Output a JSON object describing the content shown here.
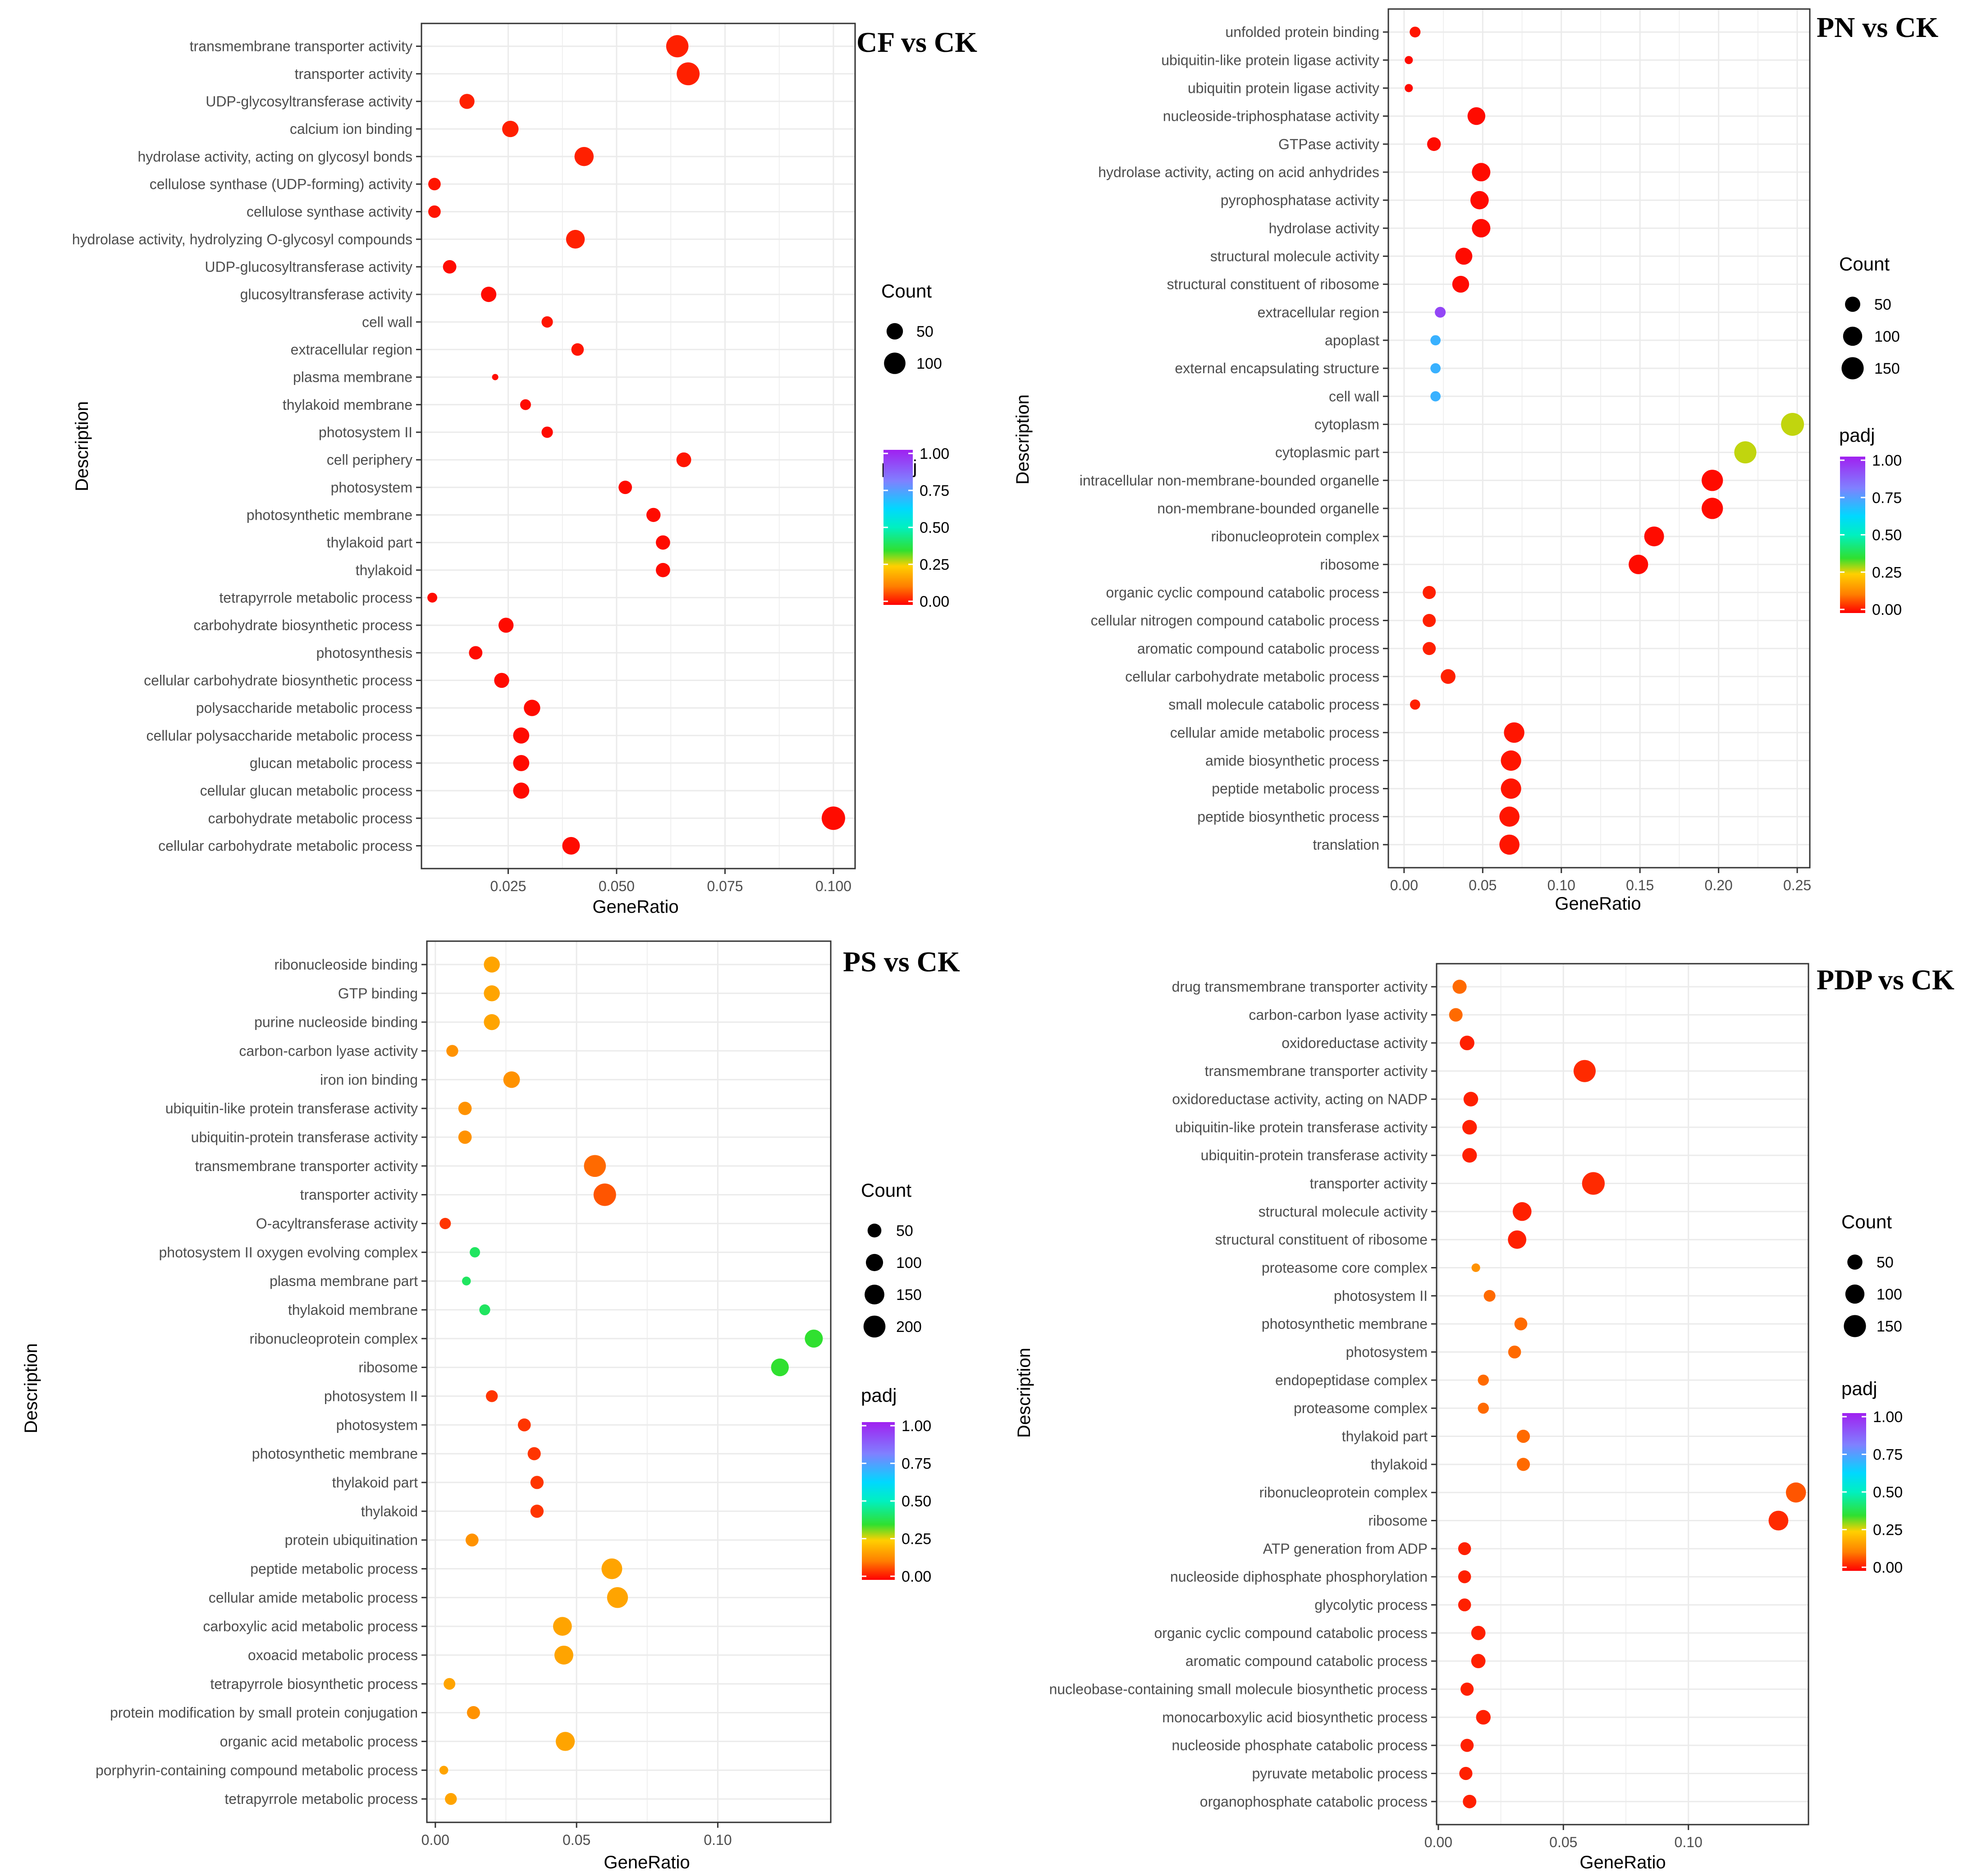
{
  "chart_data": [
    {
      "type": "scatter",
      "title": "CF vs CK",
      "xlabel": "GeneRatio",
      "ylabel": "Description",
      "xlim": [
        0.005,
        0.105
      ],
      "xticks": [
        0.025,
        0.05,
        0.075,
        0.1
      ],
      "xtick_labels": [
        "0.025",
        "0.050",
        "0.075",
        "0.100"
      ],
      "size_legend": {
        "title": "Count",
        "values": [
          50,
          100
        ]
      },
      "color_legend": {
        "title": "padj",
        "ticks": [
          "1.00",
          "0.75",
          "0.50",
          "0.25",
          "0.00"
        ]
      },
      "count_range": [
        10,
        125
      ],
      "terms": [
        {
          "label": "transmembrane transporter activity",
          "x": 0.064,
          "count": 110,
          "padj": 0.03
        },
        {
          "label": "transporter activity",
          "x": 0.0665,
          "count": 118,
          "padj": 0.03
        },
        {
          "label": "UDP-glycosyltransferase activity",
          "x": 0.0155,
          "count": 40,
          "padj": 0.03
        },
        {
          "label": "calcium ion binding",
          "x": 0.0255,
          "count": 50,
          "padj": 0.03
        },
        {
          "label": "hydrolase activity, acting on glycosyl bonds",
          "x": 0.0425,
          "count": 75,
          "padj": 0.03
        },
        {
          "label": "cellulose synthase (UDP-forming) activity",
          "x": 0.008,
          "count": 25,
          "padj": 0.02
        },
        {
          "label": "cellulose synthase activity",
          "x": 0.008,
          "count": 25,
          "padj": 0.02
        },
        {
          "label": "hydrolase activity, hydrolyzing O-glycosyl compounds",
          "x": 0.0405,
          "count": 70,
          "padj": 0.03
        },
        {
          "label": "UDP-glucosyltransferase activity",
          "x": 0.0115,
          "count": 30,
          "padj": 0.01
        },
        {
          "label": "glucosyltransferase activity",
          "x": 0.0205,
          "count": 42,
          "padj": 0.01
        },
        {
          "label": "cell wall",
          "x": 0.034,
          "count": 20,
          "padj": 0.02
        },
        {
          "label": "extracellular region",
          "x": 0.041,
          "count": 25,
          "padj": 0.02
        },
        {
          "label": "plasma membrane",
          "x": 0.022,
          "count": 10,
          "padj": 0.01
        },
        {
          "label": "thylakoid membrane",
          "x": 0.029,
          "count": 18,
          "padj": 0.01
        },
        {
          "label": "photosystem II",
          "x": 0.034,
          "count": 20,
          "padj": 0.01
        },
        {
          "label": "cell periphery",
          "x": 0.0655,
          "count": 38,
          "padj": 0.02
        },
        {
          "label": "photosystem",
          "x": 0.052,
          "count": 30,
          "padj": 0.01
        },
        {
          "label": "photosynthetic membrane",
          "x": 0.0585,
          "count": 34,
          "padj": 0.01
        },
        {
          "label": "thylakoid part",
          "x": 0.0607,
          "count": 35,
          "padj": 0.01
        },
        {
          "label": "thylakoid",
          "x": 0.0607,
          "count": 35,
          "padj": 0.01
        },
        {
          "label": "tetrapyrrole metabolic process",
          "x": 0.0075,
          "count": 15,
          "padj": 0.01
        },
        {
          "label": "carbohydrate biosynthetic process",
          "x": 0.0245,
          "count": 40,
          "padj": 0.01
        },
        {
          "label": "photosynthesis",
          "x": 0.0175,
          "count": 30,
          "padj": 0.01
        },
        {
          "label": "cellular carbohydrate biosynthetic process",
          "x": 0.0235,
          "count": 40,
          "padj": 0.01
        },
        {
          "label": "polysaccharide metabolic process",
          "x": 0.0305,
          "count": 50,
          "padj": 0.01
        },
        {
          "label": "cellular polysaccharide metabolic process",
          "x": 0.028,
          "count": 48,
          "padj": 0.01
        },
        {
          "label": "glucan metabolic process",
          "x": 0.028,
          "count": 48,
          "padj": 0.01
        },
        {
          "label": "cellular glucan metabolic process",
          "x": 0.028,
          "count": 48,
          "padj": 0.01
        },
        {
          "label": "carbohydrate metabolic process",
          "x": 0.1,
          "count": 125,
          "padj": 0.01
        },
        {
          "label": "cellular carbohydrate metabolic process",
          "x": 0.0395,
          "count": 60,
          "padj": 0.01
        }
      ]
    },
    {
      "type": "scatter",
      "title": "PN vs CK",
      "xlabel": "GeneRatio",
      "ylabel": "Description",
      "xlim": [
        -0.01,
        0.258
      ],
      "xticks": [
        0.0,
        0.05,
        0.1,
        0.15,
        0.2,
        0.25
      ],
      "xtick_labels": [
        "0.00",
        "0.05",
        "0.10",
        "0.15",
        "0.20",
        "0.25"
      ],
      "size_legend": {
        "title": "Count",
        "values": [
          50,
          100,
          150
        ]
      },
      "color_legend": {
        "title": "padj",
        "ticks": [
          "1.00",
          "0.75",
          "0.50",
          "0.25",
          "0.00"
        ]
      },
      "count_range": [
        3,
        175
      ],
      "terms": [
        {
          "label": "unfolded protein binding",
          "x": 0.007,
          "count": 15,
          "padj": 0.02
        },
        {
          "label": "ubiquitin-like protein ligase activity",
          "x": 0.003,
          "count": 5,
          "padj": 0.01
        },
        {
          "label": "ubiquitin protein ligase activity",
          "x": 0.003,
          "count": 5,
          "padj": 0.01
        },
        {
          "label": "nucleoside-triphosphatase activity",
          "x": 0.046,
          "count": 80,
          "padj": 0.01
        },
        {
          "label": "GTPase activity",
          "x": 0.019,
          "count": 35,
          "padj": 0.01
        },
        {
          "label": "hydrolase activity, acting on acid anhydrides",
          "x": 0.049,
          "count": 90,
          "padj": 0.01
        },
        {
          "label": "pyrophosphatase activity",
          "x": 0.048,
          "count": 88,
          "padj": 0.01
        },
        {
          "label": "hydrolase activity",
          "x": 0.049,
          "count": 90,
          "padj": 0.01
        },
        {
          "label": "structural molecule activity",
          "x": 0.038,
          "count": 70,
          "padj": 0.01
        },
        {
          "label": "structural constituent of ribosome",
          "x": 0.036,
          "count": 68,
          "padj": 0.01
        },
        {
          "label": "extracellular region",
          "x": 0.023,
          "count": 15,
          "padj": 0.92
        },
        {
          "label": "apoplast",
          "x": 0.02,
          "count": 12,
          "padj": 0.7
        },
        {
          "label": "external encapsulating structure",
          "x": 0.02,
          "count": 12,
          "padj": 0.7
        },
        {
          "label": "cell wall",
          "x": 0.02,
          "count": 12,
          "padj": 0.7
        },
        {
          "label": "cytoplasm",
          "x": 0.247,
          "count": 165,
          "padj": 0.28
        },
        {
          "label": "cytoplasmic part",
          "x": 0.217,
          "count": 150,
          "padj": 0.28
        },
        {
          "label": "intracellular non-membrane-bounded organelle",
          "x": 0.196,
          "count": 135,
          "padj": 0.01
        },
        {
          "label": "non-membrane-bounded organelle",
          "x": 0.196,
          "count": 135,
          "padj": 0.01
        },
        {
          "label": "ribonucleoprotein complex",
          "x": 0.159,
          "count": 110,
          "padj": 0.01
        },
        {
          "label": "ribosome",
          "x": 0.149,
          "count": 105,
          "padj": 0.01
        },
        {
          "label": "organic cyclic compound catabolic process",
          "x": 0.016,
          "count": 30,
          "padj": 0.03
        },
        {
          "label": "cellular nitrogen compound catabolic process",
          "x": 0.016,
          "count": 30,
          "padj": 0.03
        },
        {
          "label": "aromatic compound catabolic process",
          "x": 0.016,
          "count": 30,
          "padj": 0.03
        },
        {
          "label": "cellular carbohydrate metabolic process",
          "x": 0.028,
          "count": 45,
          "padj": 0.03
        },
        {
          "label": "small molecule catabolic process",
          "x": 0.007,
          "count": 12,
          "padj": 0.03
        },
        {
          "label": "cellular amide metabolic process",
          "x": 0.07,
          "count": 120,
          "padj": 0.02
        },
        {
          "label": "amide biosynthetic process",
          "x": 0.068,
          "count": 118,
          "padj": 0.02
        },
        {
          "label": "peptide metabolic process",
          "x": 0.068,
          "count": 118,
          "padj": 0.02
        },
        {
          "label": "peptide biosynthetic process",
          "x": 0.067,
          "count": 115,
          "padj": 0.02
        },
        {
          "label": "translation",
          "x": 0.067,
          "count": 115,
          "padj": 0.02
        }
      ]
    },
    {
      "type": "scatter",
      "title": "PS vs CK",
      "xlabel": "GeneRatio",
      "ylabel": "Description",
      "xlim": [
        -0.003,
        0.14
      ],
      "xticks": [
        0.0,
        0.05,
        0.1
      ],
      "xtick_labels": [
        "0.00",
        "0.05",
        "0.10"
      ],
      "size_legend": {
        "title": "Count",
        "values": [
          50,
          100,
          150,
          200
        ]
      },
      "color_legend": {
        "title": "padj",
        "ticks": [
          "1.00",
          "0.75",
          "0.50",
          "0.25",
          "0.00"
        ]
      },
      "count_range": [
        5,
        240
      ],
      "terms": [
        {
          "label": "ribonucleoside binding",
          "x": 0.02,
          "count": 80,
          "padj": 0.18
        },
        {
          "label": "GTP binding",
          "x": 0.02,
          "count": 80,
          "padj": 0.18
        },
        {
          "label": "purine nucleoside binding",
          "x": 0.02,
          "count": 80,
          "padj": 0.18
        },
        {
          "label": "carbon-carbon lyase activity",
          "x": 0.006,
          "count": 30,
          "padj": 0.15
        },
        {
          "label": "iron ion binding",
          "x": 0.027,
          "count": 90,
          "padj": 0.15
        },
        {
          "label": "ubiquitin-like protein transferase activity",
          "x": 0.0105,
          "count": 45,
          "padj": 0.15
        },
        {
          "label": "ubiquitin-protein transferase activity",
          "x": 0.0105,
          "count": 45,
          "padj": 0.15
        },
        {
          "label": "transmembrane transporter activity",
          "x": 0.0565,
          "count": 200,
          "padj": 0.1
        },
        {
          "label": "transporter activity",
          "x": 0.06,
          "count": 215,
          "padj": 0.08
        },
        {
          "label": "O-acyltransferase activity",
          "x": 0.0035,
          "count": 25,
          "padj": 0.05
        },
        {
          "label": "photosystem II oxygen evolving complex",
          "x": 0.014,
          "count": 18,
          "padj": 0.4
        },
        {
          "label": "plasma membrane part",
          "x": 0.011,
          "count": 10,
          "padj": 0.4
        },
        {
          "label": "thylakoid membrane",
          "x": 0.0175,
          "count": 22,
          "padj": 0.4
        },
        {
          "label": "ribonucleoprotein complex",
          "x": 0.134,
          "count": 115,
          "padj": 0.35
        },
        {
          "label": "ribosome",
          "x": 0.122,
          "count": 110,
          "padj": 0.35
        },
        {
          "label": "photosystem II",
          "x": 0.02,
          "count": 30,
          "padj": 0.05
        },
        {
          "label": "photosystem",
          "x": 0.0315,
          "count": 40,
          "padj": 0.05
        },
        {
          "label": "photosynthetic membrane",
          "x": 0.035,
          "count": 42,
          "padj": 0.05
        },
        {
          "label": "thylakoid part",
          "x": 0.036,
          "count": 43,
          "padj": 0.05
        },
        {
          "label": "thylakoid",
          "x": 0.036,
          "count": 43,
          "padj": 0.05
        },
        {
          "label": "protein ubiquitination",
          "x": 0.013,
          "count": 40,
          "padj": 0.15
        },
        {
          "label": "peptide metabolic process",
          "x": 0.0625,
          "count": 170,
          "padj": 0.18
        },
        {
          "label": "cellular amide metabolic process",
          "x": 0.0645,
          "count": 175,
          "padj": 0.18
        },
        {
          "label": "carboxylic acid metabolic process",
          "x": 0.045,
          "count": 130,
          "padj": 0.18
        },
        {
          "label": "oxoacid metabolic process",
          "x": 0.0455,
          "count": 132,
          "padj": 0.18
        },
        {
          "label": "tetrapyrrole biosynthetic process",
          "x": 0.005,
          "count": 28,
          "padj": 0.18
        },
        {
          "label": "protein modification by small protein conjugation",
          "x": 0.0135,
          "count": 42,
          "padj": 0.15
        },
        {
          "label": "organic acid metabolic process",
          "x": 0.046,
          "count": 135,
          "padj": 0.18
        },
        {
          "label": "porphyrin-containing compound metabolic process",
          "x": 0.003,
          "count": 10,
          "padj": 0.18
        },
        {
          "label": "tetrapyrrole metabolic process",
          "x": 0.0055,
          "count": 30,
          "padj": 0.18
        }
      ]
    },
    {
      "type": "scatter",
      "title": "PDP vs CK",
      "xlabel": "GeneRatio",
      "ylabel": "Description",
      "xlim": [
        -0.0007,
        0.148
      ],
      "xticks": [
        0.0,
        0.05,
        0.1
      ],
      "xtick_labels": [
        "0.00",
        "0.05",
        "0.10"
      ],
      "size_legend": {
        "title": "Count",
        "values": [
          50,
          100,
          150
        ]
      },
      "color_legend": {
        "title": "padj",
        "ticks": [
          "1.00",
          "0.75",
          "0.50",
          "0.25",
          "0.00"
        ]
      },
      "count_range": [
        5,
        175
      ],
      "terms": [
        {
          "label": "drug transmembrane transporter activity",
          "x": 0.0085,
          "count": 40,
          "padj": 0.1
        },
        {
          "label": "carbon-carbon lyase activity",
          "x": 0.007,
          "count": 35,
          "padj": 0.1
        },
        {
          "label": "oxidoreductase activity",
          "x": 0.0115,
          "count": 45,
          "padj": 0.03
        },
        {
          "label": "transmembrane transporter activity",
          "x": 0.0585,
          "count": 150,
          "padj": 0.04
        },
        {
          "label": "oxidoreductase activity, acting on NADP",
          "x": 0.013,
          "count": 45,
          "padj": 0.03
        },
        {
          "label": "ubiquitin-like protein transferase activity",
          "x": 0.0125,
          "count": 45,
          "padj": 0.03
        },
        {
          "label": "ubiquitin-protein transferase activity",
          "x": 0.0125,
          "count": 45,
          "padj": 0.03
        },
        {
          "label": "transporter activity",
          "x": 0.062,
          "count": 160,
          "padj": 0.04
        },
        {
          "label": "structural molecule activity",
          "x": 0.0335,
          "count": 95,
          "padj": 0.03
        },
        {
          "label": "structural constituent of ribosome",
          "x": 0.0315,
          "count": 90,
          "padj": 0.03
        },
        {
          "label": "proteasome core complex",
          "x": 0.015,
          "count": 8,
          "padj": 0.15
        },
        {
          "label": "photosystem II",
          "x": 0.0205,
          "count": 22,
          "padj": 0.1
        },
        {
          "label": "photosynthetic membrane",
          "x": 0.033,
          "count": 30,
          "padj": 0.1
        },
        {
          "label": "photosystem",
          "x": 0.0305,
          "count": 30,
          "padj": 0.1
        },
        {
          "label": "endopeptidase complex",
          "x": 0.018,
          "count": 18,
          "padj": 0.1
        },
        {
          "label": "proteasome complex",
          "x": 0.018,
          "count": 18,
          "padj": 0.1
        },
        {
          "label": "thylakoid part",
          "x": 0.034,
          "count": 32,
          "padj": 0.1
        },
        {
          "label": "thylakoid",
          "x": 0.034,
          "count": 32,
          "padj": 0.1
        },
        {
          "label": "ribonucleoprotein complex",
          "x": 0.143,
          "count": 115,
          "padj": 0.08
        },
        {
          "label": "ribosome",
          "x": 0.136,
          "count": 110,
          "padj": 0.04
        },
        {
          "label": "ATP generation from ADP",
          "x": 0.0105,
          "count": 30,
          "padj": 0.03
        },
        {
          "label": "nucleoside diphosphate phosphorylation",
          "x": 0.0105,
          "count": 30,
          "padj": 0.03
        },
        {
          "label": "glycolytic process",
          "x": 0.0105,
          "count": 30,
          "padj": 0.03
        },
        {
          "label": "organic cyclic compound catabolic process",
          "x": 0.016,
          "count": 42,
          "padj": 0.03
        },
        {
          "label": "aromatic compound catabolic process",
          "x": 0.016,
          "count": 42,
          "padj": 0.03
        },
        {
          "label": "nucleobase-containing small molecule biosynthetic process",
          "x": 0.0115,
          "count": 32,
          "padj": 0.03
        },
        {
          "label": "monocarboxylic acid biosynthetic process",
          "x": 0.018,
          "count": 45,
          "padj": 0.03
        },
        {
          "label": "nucleoside phosphate catabolic process",
          "x": 0.0115,
          "count": 32,
          "padj": 0.03
        },
        {
          "label": "pyruvate metabolic process",
          "x": 0.011,
          "count": 32,
          "padj": 0.03
        },
        {
          "label": "organophosphate catabolic process",
          "x": 0.0125,
          "count": 35,
          "padj": 0.03
        }
      ]
    }
  ]
}
